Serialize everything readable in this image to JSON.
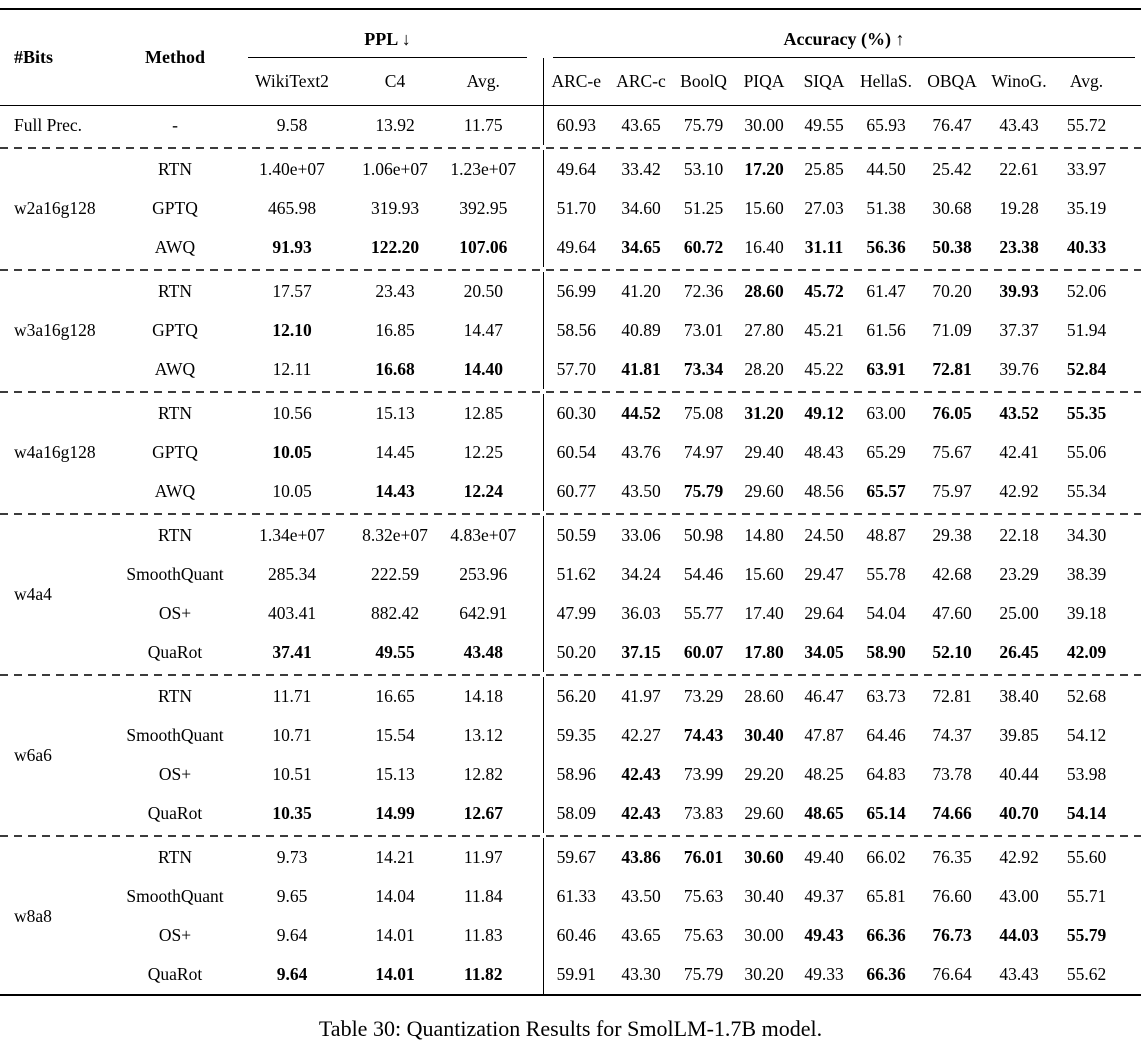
{
  "table": {
    "caption": "Table 30: Quantization Results for SmolLM-1.7B model.",
    "header": {
      "bits": "#Bits",
      "method": "Method",
      "ppl_group": "PPL ↓",
      "acc_group": "Accuracy (%) ↑",
      "ppl_cols": [
        "WikiText2",
        "C4",
        "Avg."
      ],
      "acc_cols": [
        "ARC-e",
        "ARC-c",
        "BoolQ",
        "PIQA",
        "SIQA",
        "HellaS.",
        "OBQA",
        "WinoG.",
        "Avg."
      ]
    },
    "groups": [
      {
        "bits": "Full Prec.",
        "rows": [
          {
            "method": "-",
            "ppl": [
              "9.58",
              "13.92",
              "11.75"
            ],
            "ppl_b": [],
            "acc": [
              "60.93",
              "43.65",
              "75.79",
              "30.00",
              "49.55",
              "65.93",
              "76.47",
              "43.43",
              "55.72"
            ],
            "acc_b": []
          }
        ]
      },
      {
        "bits": "w2a16g128",
        "rows": [
          {
            "method": "RTN",
            "ppl": [
              "1.40e+07",
              "1.06e+07",
              "1.23e+07"
            ],
            "ppl_b": [],
            "acc": [
              "49.64",
              "33.42",
              "53.10",
              "17.20",
              "25.85",
              "44.50",
              "25.42",
              "22.61",
              "33.97"
            ],
            "acc_b": [
              3
            ]
          },
          {
            "method": "GPTQ",
            "ppl": [
              "465.98",
              "319.93",
              "392.95"
            ],
            "ppl_b": [],
            "acc": [
              "51.70",
              "34.60",
              "51.25",
              "15.60",
              "27.03",
              "51.38",
              "30.68",
              "19.28",
              "35.19"
            ],
            "acc_b": []
          },
          {
            "method": "AWQ",
            "ppl": [
              "91.93",
              "122.20",
              "107.06"
            ],
            "ppl_b": [
              0,
              1,
              2
            ],
            "acc": [
              "49.64",
              "34.65",
              "60.72",
              "16.40",
              "31.11",
              "56.36",
              "50.38",
              "23.38",
              "40.33"
            ],
            "acc_b": [
              1,
              2,
              4,
              5,
              6,
              7,
              8
            ]
          }
        ]
      },
      {
        "bits": "w3a16g128",
        "rows": [
          {
            "method": "RTN",
            "ppl": [
              "17.57",
              "23.43",
              "20.50"
            ],
            "ppl_b": [],
            "acc": [
              "56.99",
              "41.20",
              "72.36",
              "28.60",
              "45.72",
              "61.47",
              "70.20",
              "39.93",
              "52.06"
            ],
            "acc_b": [
              3,
              4,
              7
            ]
          },
          {
            "method": "GPTQ",
            "ppl": [
              "12.10",
              "16.85",
              "14.47"
            ],
            "ppl_b": [
              0
            ],
            "acc": [
              "58.56",
              "40.89",
              "73.01",
              "27.80",
              "45.21",
              "61.56",
              "71.09",
              "37.37",
              "51.94"
            ],
            "acc_b": []
          },
          {
            "method": "AWQ",
            "ppl": [
              "12.11",
              "16.68",
              "14.40"
            ],
            "ppl_b": [
              1,
              2
            ],
            "acc": [
              "57.70",
              "41.81",
              "73.34",
              "28.20",
              "45.22",
              "63.91",
              "72.81",
              "39.76",
              "52.84"
            ],
            "acc_b": [
              1,
              2,
              5,
              6,
              8
            ]
          }
        ]
      },
      {
        "bits": "w4a16g128",
        "rows": [
          {
            "method": "RTN",
            "ppl": [
              "10.56",
              "15.13",
              "12.85"
            ],
            "ppl_b": [],
            "acc": [
              "60.30",
              "44.52",
              "75.08",
              "31.20",
              "49.12",
              "63.00",
              "76.05",
              "43.52",
              "55.35"
            ],
            "acc_b": [
              1,
              3,
              4,
              6,
              7,
              8
            ]
          },
          {
            "method": "GPTQ",
            "ppl": [
              "10.05",
              "14.45",
              "12.25"
            ],
            "ppl_b": [
              0
            ],
            "acc": [
              "60.54",
              "43.76",
              "74.97",
              "29.40",
              "48.43",
              "65.29",
              "75.67",
              "42.41",
              "55.06"
            ],
            "acc_b": []
          },
          {
            "method": "AWQ",
            "ppl": [
              "10.05",
              "14.43",
              "12.24"
            ],
            "ppl_b": [
              1,
              2
            ],
            "acc": [
              "60.77",
              "43.50",
              "75.79",
              "29.60",
              "48.56",
              "65.57",
              "75.97",
              "42.92",
              "55.34"
            ],
            "acc_b": [
              2,
              5
            ]
          }
        ]
      },
      {
        "bits": "w4a4",
        "rows": [
          {
            "method": "RTN",
            "ppl": [
              "1.34e+07",
              "8.32e+07",
              "4.83e+07"
            ],
            "ppl_b": [],
            "acc": [
              "50.59",
              "33.06",
              "50.98",
              "14.80",
              "24.50",
              "48.87",
              "29.38",
              "22.18",
              "34.30"
            ],
            "acc_b": []
          },
          {
            "method": "SmoothQuant",
            "ppl": [
              "285.34",
              "222.59",
              "253.96"
            ],
            "ppl_b": [],
            "acc": [
              "51.62",
              "34.24",
              "54.46",
              "15.60",
              "29.47",
              "55.78",
              "42.68",
              "23.29",
              "38.39"
            ],
            "acc_b": []
          },
          {
            "method": "OS+",
            "ppl": [
              "403.41",
              "882.42",
              "642.91"
            ],
            "ppl_b": [],
            "acc": [
              "47.99",
              "36.03",
              "55.77",
              "17.40",
              "29.64",
              "54.04",
              "47.60",
              "25.00",
              "39.18"
            ],
            "acc_b": []
          },
          {
            "method": "QuaRot",
            "ppl": [
              "37.41",
              "49.55",
              "43.48"
            ],
            "ppl_b": [
              0,
              1,
              2
            ],
            "acc": [
              "50.20",
              "37.15",
              "60.07",
              "17.80",
              "34.05",
              "58.90",
              "52.10",
              "26.45",
              "42.09"
            ],
            "acc_b": [
              1,
              2,
              3,
              4,
              5,
              6,
              7,
              8
            ]
          }
        ]
      },
      {
        "bits": "w6a6",
        "rows": [
          {
            "method": "RTN",
            "ppl": [
              "11.71",
              "16.65",
              "14.18"
            ],
            "ppl_b": [],
            "acc": [
              "56.20",
              "41.97",
              "73.29",
              "28.60",
              "46.47",
              "63.73",
              "72.81",
              "38.40",
              "52.68"
            ],
            "acc_b": []
          },
          {
            "method": "SmoothQuant",
            "ppl": [
              "10.71",
              "15.54",
              "13.12"
            ],
            "ppl_b": [],
            "acc": [
              "59.35",
              "42.27",
              "74.43",
              "30.40",
              "47.87",
              "64.46",
              "74.37",
              "39.85",
              "54.12"
            ],
            "acc_b": [
              2,
              3
            ]
          },
          {
            "method": "OS+",
            "ppl": [
              "10.51",
              "15.13",
              "12.82"
            ],
            "ppl_b": [],
            "acc": [
              "58.96",
              "42.43",
              "73.99",
              "29.20",
              "48.25",
              "64.83",
              "73.78",
              "40.44",
              "53.98"
            ],
            "acc_b": [
              1
            ]
          },
          {
            "method": "QuaRot",
            "ppl": [
              "10.35",
              "14.99",
              "12.67"
            ],
            "ppl_b": [
              0,
              1,
              2
            ],
            "acc": [
              "58.09",
              "42.43",
              "73.83",
              "29.60",
              "48.65",
              "65.14",
              "74.66",
              "40.70",
              "54.14"
            ],
            "acc_b": [
              1,
              4,
              5,
              6,
              7,
              8
            ]
          }
        ]
      },
      {
        "bits": "w8a8",
        "rows": [
          {
            "method": "RTN",
            "ppl": [
              "9.73",
              "14.21",
              "11.97"
            ],
            "ppl_b": [],
            "acc": [
              "59.67",
              "43.86",
              "76.01",
              "30.60",
              "49.40",
              "66.02",
              "76.35",
              "42.92",
              "55.60"
            ],
            "acc_b": [
              1,
              2,
              3
            ]
          },
          {
            "method": "SmoothQuant",
            "ppl": [
              "9.65",
              "14.04",
              "11.84"
            ],
            "ppl_b": [],
            "acc": [
              "61.33",
              "43.50",
              "75.63",
              "30.40",
              "49.37",
              "65.81",
              "76.60",
              "43.00",
              "55.71"
            ],
            "acc_b": []
          },
          {
            "method": "OS+",
            "ppl": [
              "9.64",
              "14.01",
              "11.83"
            ],
            "ppl_b": [],
            "acc": [
              "60.46",
              "43.65",
              "75.63",
              "30.00",
              "49.43",
              "66.36",
              "76.73",
              "44.03",
              "55.79"
            ],
            "acc_b": [
              4,
              5,
              6,
              7,
              8
            ]
          },
          {
            "method": "QuaRot",
            "ppl": [
              "9.64",
              "14.01",
              "11.82"
            ],
            "ppl_b": [
              0,
              1,
              2
            ],
            "acc": [
              "59.91",
              "43.30",
              "75.79",
              "30.20",
              "49.33",
              "66.36",
              "76.64",
              "43.43",
              "55.62"
            ],
            "acc_b": [
              5
            ]
          }
        ]
      }
    ]
  }
}
